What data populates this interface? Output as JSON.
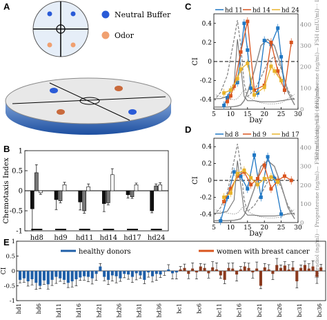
{
  "panels": {
    "a": {
      "letter": "A",
      "legend": [
        "Neutral Buffer",
        "Odor"
      ],
      "colors": {
        "buffer": "#2a5bd7",
        "odor": "#f0a070"
      }
    },
    "b": {
      "letter": "B"
    },
    "c": {
      "letter": "C"
    },
    "d": {
      "letter": "D"
    },
    "e": {
      "letter": "E"
    }
  },
  "chart_data": [
    {
      "id": "B",
      "type": "bar",
      "ylabel": "Chemotaxis Index",
      "ylim": [
        -1,
        1
      ],
      "yticks": [
        "-1",
        "-0.5",
        "0",
        "0.5",
        "1"
      ],
      "categories": [
        "hd8",
        "hd9",
        "hd11",
        "hd14",
        "hd17",
        "hd24"
      ],
      "series": [
        {
          "values": [
            -0.45,
            -0.22,
            -0.28,
            -0.32,
            -0.1,
            -0.5
          ]
        },
        {
          "values": [
            0.45,
            -0.25,
            -0.5,
            -0.3,
            -0.15,
            0.12
          ]
        },
        {
          "values": [
            -0.05,
            0.15,
            0.1,
            0.4,
            0.15,
            0.15
          ]
        }
      ],
      "errors": [
        [
          0.55,
          0.25,
          0.2,
          0.2,
          0.08,
          0.05
        ],
        [
          0.2,
          0.05,
          0.06,
          0.05,
          0.04,
          0.05
        ],
        [
          0.04,
          0.06,
          0.07,
          0.15,
          0.04,
          0.05
        ]
      ]
    },
    {
      "id": "C",
      "type": "line",
      "xlabel": "Day",
      "ylabel": "CI",
      "y2label": "Estradiol (ng/ml)··· Progesterone (ng/ml)— FSH (mIU/ml)··· LH (mIU/ml)—",
      "xlim": [
        5,
        30
      ],
      "ylim": [
        -0.5,
        0.5
      ],
      "xticks": [
        "5",
        "10",
        "15",
        "20",
        "25",
        "30"
      ],
      "yticks": [
        "-0.4",
        "-0.2",
        "0",
        "0.2",
        "0.4"
      ],
      "y2ticks": [
        "0",
        "100",
        "200",
        "300",
        "400"
      ],
      "series": [
        {
          "name": "hd 11",
          "color": "#1f77c4",
          "x": [
            8,
            9,
            10,
            12,
            14,
            15,
            16,
            18,
            20,
            22,
            24,
            25,
            26
          ],
          "y": [
            -0.46,
            -0.38,
            -0.3,
            -0.22,
            0.4,
            0.12,
            -0.28,
            -0.33,
            0.22,
            0.18,
            0.35,
            0.05,
            -0.3
          ]
        },
        {
          "name": "hd 14",
          "color": "#d9541e",
          "x": [
            9,
            10,
            11,
            13,
            15,
            17,
            20,
            22,
            24,
            26,
            28
          ],
          "y": [
            -0.42,
            -0.36,
            -0.26,
            0.1,
            0.42,
            -0.3,
            -0.25,
            0.2,
            -0.1,
            -0.3,
            0.2
          ]
        },
        {
          "name": "hd 24",
          "color": "#e8b32a",
          "x": [
            8,
            10,
            12,
            13,
            15,
            17,
            20,
            22,
            23,
            25
          ],
          "y": [
            -0.33,
            -0.3,
            -0.18,
            -0.08,
            -0.02,
            -0.35,
            -0.27,
            -0.05,
            -0.1,
            -0.2
          ]
        }
      ]
    },
    {
      "id": "D",
      "type": "line",
      "xlabel": "Day",
      "ylabel": "CI",
      "y2label": "Estradiol (ng/ml)··· Progesterone (ng/ml)— FSH (mIU/ml)··· LH (mIU/ml)—",
      "xlim": [
        5,
        30
      ],
      "ylim": [
        -0.5,
        0.5
      ],
      "xticks": [
        "5",
        "10",
        "15",
        "20",
        "25",
        "30"
      ],
      "yticks": [
        "-0.4",
        "-0.2",
        "0",
        "0.2",
        "0.4"
      ],
      "y2ticks": [
        "0",
        "100",
        "200",
        "300",
        "400"
      ],
      "series": [
        {
          "name": "hd 8",
          "color": "#1f77c4",
          "x": [
            7,
            9,
            11,
            13,
            15,
            17,
            19,
            21,
            23,
            25
          ],
          "y": [
            -0.48,
            -0.2,
            0.1,
            0.05,
            -0.1,
            0.3,
            -0.2,
            0.28,
            0.02,
            -0.4
          ]
        },
        {
          "name": "hd 9",
          "color": "#d9541e",
          "x": [
            8,
            10,
            12,
            14,
            16,
            18,
            20,
            22,
            24,
            26,
            28
          ],
          "y": [
            -0.25,
            -0.1,
            0.05,
            0.1,
            -0.05,
            0.02,
            0.18,
            -0.1,
            0.0,
            0.05,
            0.0
          ]
        },
        {
          "name": "hd 17",
          "color": "#e8b32a",
          "x": [
            8,
            10,
            12,
            14,
            16,
            18,
            20,
            22,
            24
          ],
          "y": [
            -0.2,
            -0.15,
            0.08,
            0.12,
            0.03,
            -0.05,
            0.02,
            0.04,
            -0.02
          ]
        }
      ]
    },
    {
      "id": "E",
      "type": "bar",
      "ylabel": "CI",
      "ylim": [
        -1,
        1
      ],
      "yticks": [
        "-1",
        "-0.5",
        "0",
        "0.5",
        "1"
      ],
      "legend": [
        "healthy donors",
        "women with breast cancer"
      ],
      "colors": [
        "#1f5fa8",
        "#8b3a1e"
      ],
      "tick_labels": [
        "hd1",
        "hd6",
        "hd11",
        "hd16",
        "hd21",
        "hd26",
        "hd31",
        "hd36",
        "bc1",
        "bc6",
        "bc11",
        "bc16",
        "bc21",
        "bc26",
        "bc31",
        "bc36"
      ],
      "hd_values": [
        -0.3,
        -0.25,
        -0.35,
        -0.28,
        -0.4,
        -0.5,
        -0.32,
        -0.45,
        -0.3,
        -0.2,
        -0.25,
        -0.3,
        -0.4,
        -0.35,
        -0.28,
        -0.22,
        -0.18,
        -0.2,
        -0.25,
        -0.1,
        0.15,
        -0.2,
        -0.3,
        -0.15,
        -0.18,
        -0.25,
        -0.1,
        -0.12,
        -0.2,
        -0.08,
        -0.15,
        -0.3,
        -0.05,
        -0.18,
        -0.1,
        -0.12,
        -0.02,
        0.05,
        -0.08,
        -0.05
      ],
      "bc_values": [
        0.05,
        0.1,
        -0.1,
        0.08,
        -0.05,
        0.15,
        0.1,
        -0.08,
        0.12,
        0.05,
        -0.15,
        -0.3,
        0.1,
        0.08,
        -0.12,
        0.05,
        0.15,
        0.1,
        -0.05,
        0.08,
        -0.5,
        0.12,
        0.05,
        -0.1,
        0.2,
        0.1,
        0.18,
        0.05,
        0.12,
        -0.35,
        0.1,
        0.2,
        0.08,
        0.15,
        -0.2,
        0.12
      ]
    }
  ]
}
